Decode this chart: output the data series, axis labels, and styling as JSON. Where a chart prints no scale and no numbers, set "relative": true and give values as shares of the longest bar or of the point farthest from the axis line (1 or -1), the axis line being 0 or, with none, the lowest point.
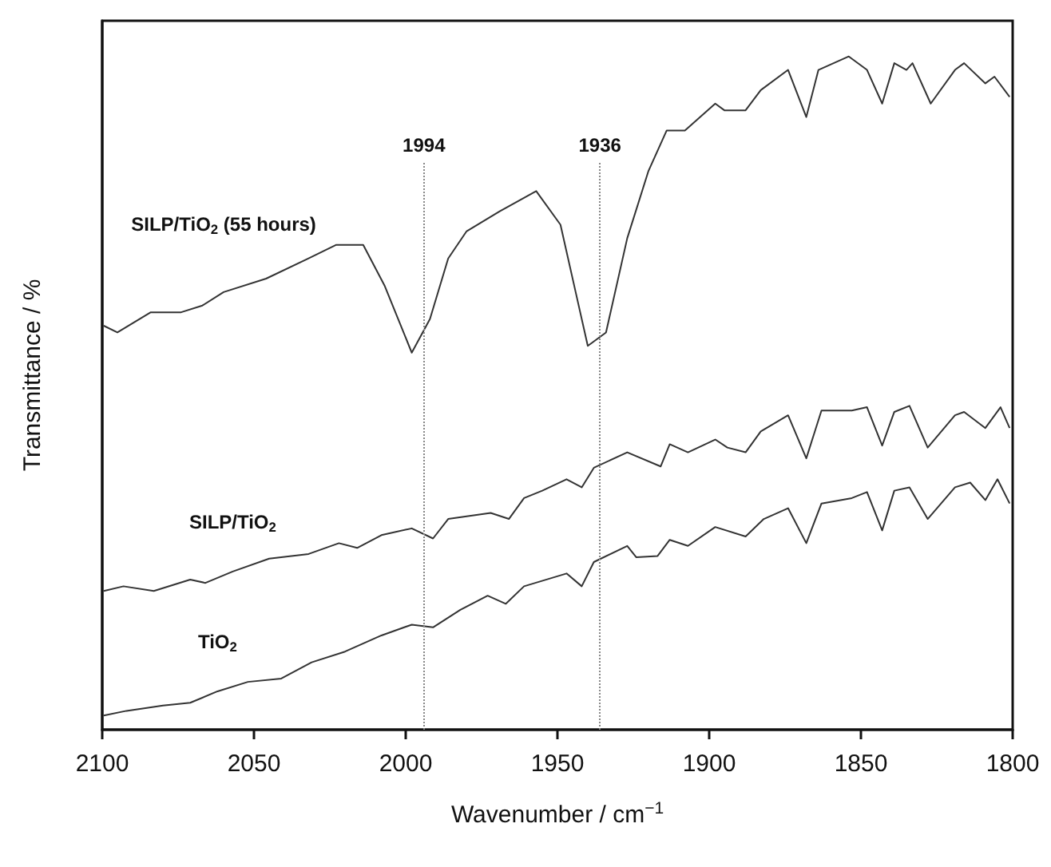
{
  "chart_data": {
    "type": "line",
    "relative": true,
    "xlabel": "Wavenumber / cm$^{−1}$",
    "ylabel": "Transmittance / %",
    "xlim": [
      2100,
      1800
    ],
    "xticks": [
      2100,
      2050,
      2000,
      1950,
      1900,
      1850,
      1800
    ],
    "grid": false,
    "legend": false,
    "marker": "none",
    "line_style": "solid",
    "ref_lines": [
      {
        "axis": "x",
        "value": 1994,
        "label": "1994",
        "color": "#888888",
        "line_style": "dotted"
      },
      {
        "axis": "x",
        "value": 1936,
        "label": "1936",
        "color": "#888888",
        "line_style": "dotted"
      }
    ],
    "series": [
      {
        "name": "SILP/TiO$_{2}$ (55 hours)",
        "color": "#333333",
        "x": [
          2099.5,
          2095,
          2084,
          2074,
          2067,
          2060,
          2046,
          2032,
          2023,
          2014,
          2007,
          1998,
          1992,
          1986,
          1980,
          1969,
          1957,
          1949,
          1944,
          1940,
          1934,
          1927,
          1920,
          1914,
          1908,
          1898,
          1895,
          1888,
          1883,
          1874,
          1868,
          1864,
          1854,
          1848,
          1843,
          1839,
          1835,
          1833,
          1827,
          1819,
          1816,
          1809,
          1806,
          1801
        ],
        "values": [
          0.6,
          0.59,
          0.62,
          0.62,
          0.63,
          0.65,
          0.67,
          0.7,
          0.72,
          0.72,
          0.66,
          0.56,
          0.61,
          0.7,
          0.74,
          0.77,
          0.8,
          0.75,
          0.65,
          0.57,
          0.59,
          0.73,
          0.83,
          0.89,
          0.89,
          0.93,
          0.92,
          0.92,
          0.95,
          0.98,
          0.91,
          0.98,
          1.0,
          0.98,
          0.93,
          0.99,
          0.98,
          0.99,
          0.93,
          0.98,
          0.99,
          0.96,
          0.97,
          0.94
        ]
      },
      {
        "name": "SILP/TiO$_{2}$",
        "color": "#333333",
        "x": [
          2099.5,
          2093,
          2083,
          2071,
          2066,
          2057,
          2045,
          2032,
          2022,
          2016,
          2008,
          1998,
          1991,
          1986,
          1972,
          1966,
          1961,
          1955,
          1947,
          1942,
          1938,
          1927,
          1916,
          1913,
          1907,
          1898,
          1894,
          1888,
          1883,
          1874,
          1868,
          1863,
          1853,
          1848,
          1843,
          1839,
          1834,
          1828,
          1819,
          1816,
          1809,
          1804,
          1801
        ],
        "values": [
          0.206,
          0.213,
          0.206,
          0.223,
          0.218,
          0.235,
          0.254,
          0.261,
          0.277,
          0.27,
          0.289,
          0.299,
          0.284,
          0.313,
          0.322,
          0.313,
          0.344,
          0.355,
          0.372,
          0.36,
          0.389,
          0.412,
          0.391,
          0.424,
          0.412,
          0.431,
          0.419,
          0.412,
          0.443,
          0.467,
          0.403,
          0.474,
          0.474,
          0.479,
          0.422,
          0.472,
          0.481,
          0.419,
          0.467,
          0.472,
          0.448,
          0.479,
          0.448
        ]
      },
      {
        "name": "TiO$_{2}$",
        "color": "#333333",
        "x": [
          2099.5,
          2092,
          2080,
          2071,
          2062,
          2052,
          2041,
          2031,
          2020,
          2008,
          1998,
          1991,
          1982,
          1973,
          1967,
          1961,
          1947,
          1942,
          1938,
          1927,
          1924,
          1917,
          1913,
          1907,
          1898,
          1888,
          1882,
          1874,
          1868,
          1863,
          1853,
          1848,
          1843,
          1839,
          1834,
          1828,
          1819,
          1814,
          1809,
          1805,
          1801
        ],
        "values": [
          0.021,
          0.028,
          0.036,
          0.04,
          0.057,
          0.071,
          0.076,
          0.1,
          0.116,
          0.14,
          0.156,
          0.152,
          0.178,
          0.199,
          0.187,
          0.213,
          0.232,
          0.213,
          0.249,
          0.273,
          0.256,
          0.258,
          0.282,
          0.273,
          0.301,
          0.287,
          0.313,
          0.329,
          0.277,
          0.336,
          0.344,
          0.353,
          0.296,
          0.355,
          0.36,
          0.313,
          0.36,
          0.367,
          0.341,
          0.372,
          0.336
        ]
      }
    ]
  }
}
